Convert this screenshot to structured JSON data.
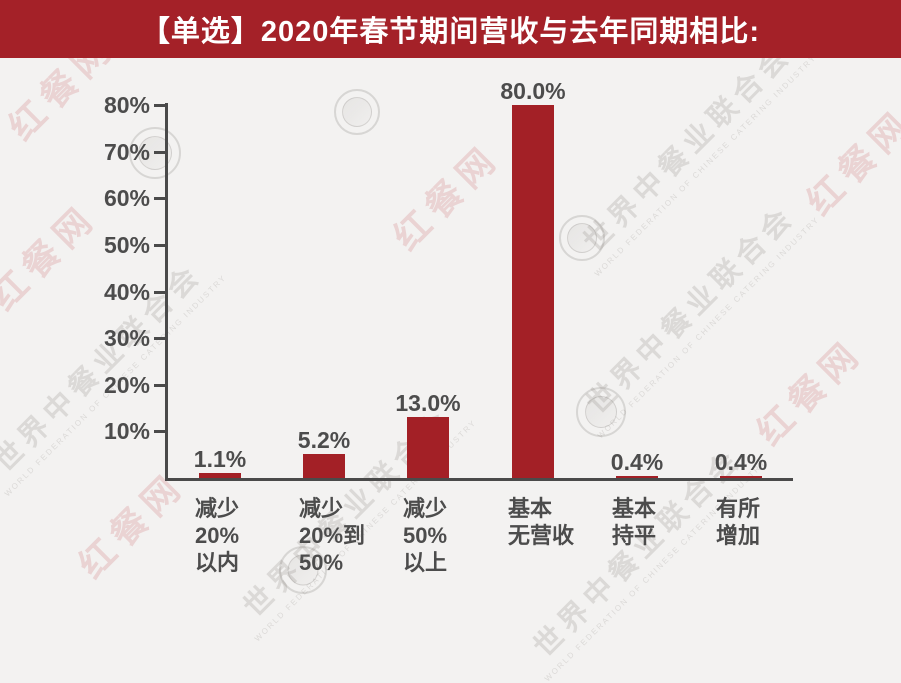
{
  "header": {
    "title": "【单选】2020年春节期间营收与去年同期相比:"
  },
  "colors": {
    "header_bg": "#a42128",
    "bar": "#a32026",
    "axis": "#4a4a4a",
    "label_text": "#4c4c4c",
    "title_text": "#ffffff",
    "background": "#f3f2f1",
    "watermark_red": "rgba(190,62,66,0.17)",
    "watermark_gray": "rgba(125,121,115,0.20)",
    "watermark_seal": "rgba(120,115,108,0.22)"
  },
  "chart_data": {
    "type": "bar",
    "title": "【单选】2020年春节期间营收与去年同期相比:",
    "categories": [
      "减少20%以内",
      "减少20%到50%",
      "减少50%以上",
      "基本无营收",
      "基本持平",
      "有所增加"
    ],
    "category_lines": [
      [
        "减少",
        "20%",
        "以内"
      ],
      [
        "减少",
        "20%到",
        "50%"
      ],
      [
        "减少",
        "50%",
        "以上"
      ],
      [
        "基本",
        "无营收"
      ],
      [
        "基本",
        "持平"
      ],
      [
        "有所",
        "增加"
      ]
    ],
    "values": [
      1.1,
      5.2,
      13.0,
      80.0,
      0.4,
      0.4
    ],
    "value_labels": [
      "1.1%",
      "5.2%",
      "13.0%",
      "80.0%",
      "0.4%",
      "0.4%"
    ],
    "xlabel": "",
    "ylabel": "",
    "ylim": [
      0,
      80
    ],
    "yticks": [
      10,
      20,
      30,
      40,
      50,
      60,
      70,
      80
    ],
    "ytick_labels": [
      "10%",
      "20%",
      "30%",
      "40%",
      "50%",
      "60%",
      "70%",
      "80%"
    ],
    "grid": false,
    "legend": false
  },
  "watermarks": {
    "red_text": "红餐网",
    "gray_text": "世界中餐业联合会",
    "gray_subtext": "WORLD FEDERATION OF CHINESE CATERING INDUSTRY"
  }
}
